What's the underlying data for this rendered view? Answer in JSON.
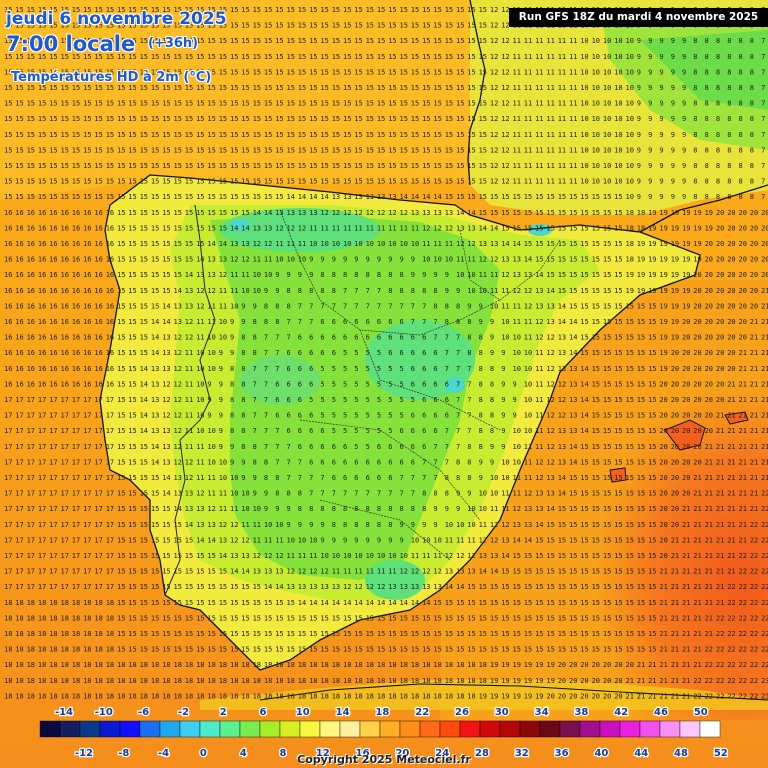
{
  "header": {
    "date": "jeudi 6 novembre 2025",
    "time": "7:00 locale",
    "lead": "(+36h)",
    "variable": "Températures HD à 2m (°C)"
  },
  "run_label": "Run GFS 18Z du mardi 4 novembre 2025",
  "copyright": "Copyright 2025 Meteociel.fr",
  "legend": {
    "top_labels": [
      "-14",
      "-10",
      "-6",
      "-2",
      "2",
      "6",
      "10",
      "14",
      "18",
      "22",
      "26",
      "30",
      "34",
      "38",
      "42",
      "46",
      "50"
    ],
    "bottom_labels": [
      "-12",
      "-8",
      "-4",
      "0",
      "4",
      "8",
      "12",
      "16",
      "20",
      "24",
      "28",
      "32",
      "36",
      "40",
      "44",
      "48",
      "52"
    ],
    "colors": [
      "#0c0a3c",
      "#14205e",
      "#0a3a8a",
      "#0a1ad0",
      "#1010ff",
      "#1a6ef0",
      "#1ea8f0",
      "#3cd0f0",
      "#4aeecc",
      "#5cf090",
      "#78ee50",
      "#a8ee28",
      "#d8f020",
      "#f8f840",
      "#fff880",
      "#fff0a0",
      "#ffd24a",
      "#ffae28",
      "#ff8e18",
      "#ff6a18",
      "#ff4a10",
      "#f01414",
      "#d00808",
      "#b00808",
      "#8a0808",
      "#6a0818",
      "#781050",
      "#a0108c",
      "#c810c0",
      "#e820e0",
      "#f050f0",
      "#f890f8",
      "#fcc8fc",
      "#ffffff"
    ]
  },
  "palette": {
    "sea_cold": "#f7a21a",
    "sea_mild": "#fbb818",
    "land_yellow": "#f4ec3a",
    "land_lime": "#c6ec30",
    "land_green": "#7fe23c",
    "land_teal": "#58e07a",
    "land_cyan": "#4ad8c0",
    "med_orange": "#f7871f",
    "med_red": "#f4601c",
    "coast": "#111111",
    "border": "#222222"
  }
}
